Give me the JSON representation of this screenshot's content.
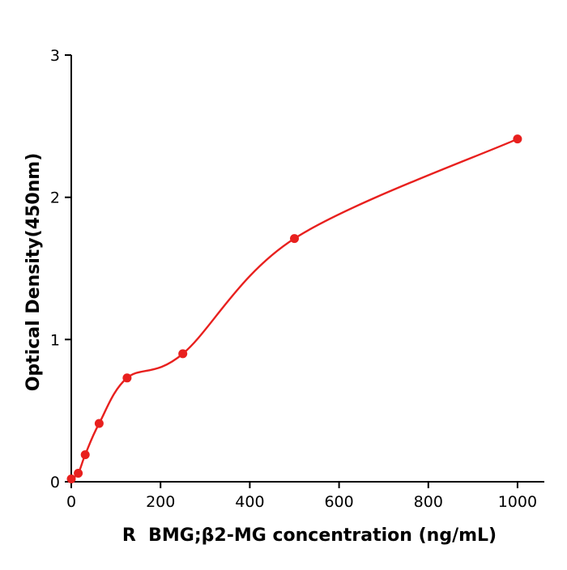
{
  "chart_data": {
    "type": "scatter",
    "title": "",
    "xlabel": "R  BMG;β2-MG concentration (ng/mL)",
    "ylabel": "Optical Density(450nm)",
    "x": [
      0,
      15.6,
      31.25,
      62.5,
      125,
      250,
      500,
      1000
    ],
    "y": [
      0.02,
      0.06,
      0.19,
      0.41,
      0.73,
      0.9,
      1.71,
      2.41
    ],
    "xticks": [
      0,
      200,
      400,
      600,
      800,
      1000
    ],
    "yticks": [
      0,
      1,
      2,
      3
    ],
    "xlim": [
      0,
      1060
    ],
    "ylim": [
      0,
      3
    ],
    "point_color": "#e8201e",
    "line_color": "#e8201e",
    "axis_color": "#000000",
    "grid": false,
    "legend": false,
    "curve_style": "smooth fitted curve through points"
  }
}
